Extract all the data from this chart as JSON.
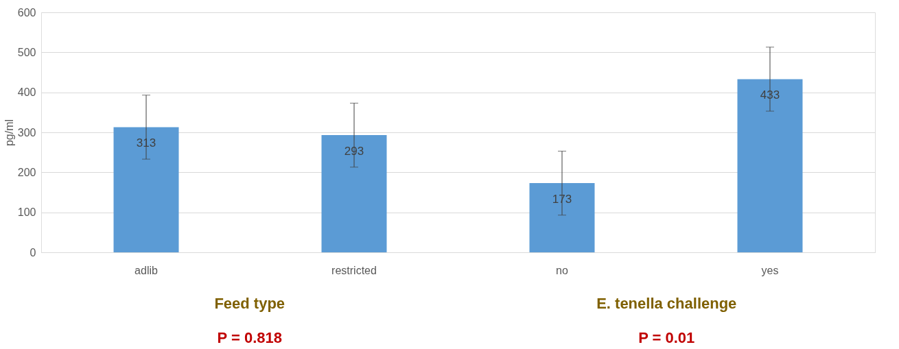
{
  "chart_data": {
    "type": "bar",
    "ylabel": "pg/ml",
    "categories": [
      "adlib",
      "restricted",
      "no",
      "yes"
    ],
    "values": [
      313,
      293,
      173,
      433
    ],
    "errors": [
      80,
      80,
      80,
      80
    ],
    "color": "#5b9bd5",
    "data_labels": true,
    "ylim": [
      0,
      600
    ],
    "yticks": [
      0,
      100,
      200,
      300,
      400,
      500,
      600
    ],
    "grid": "y",
    "annotations": [
      "Feed type",
      "E. tenella challenge",
      "P = 0.818",
      "P = 0.01"
    ]
  }
}
